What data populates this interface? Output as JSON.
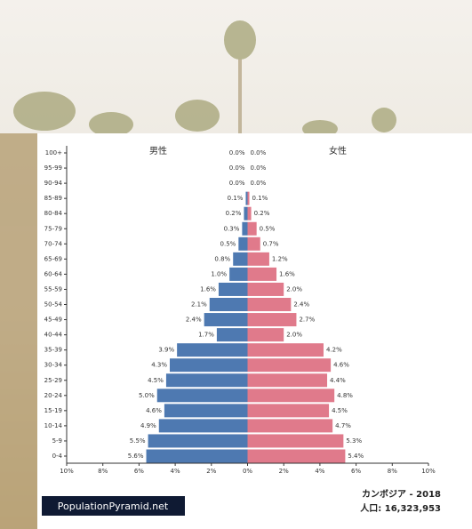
{
  "chart_data": {
    "type": "pyramid",
    "categories": [
      "100+",
      "95-99",
      "90-94",
      "85-89",
      "80-84",
      "75-79",
      "70-74",
      "65-69",
      "60-64",
      "55-59",
      "50-54",
      "45-49",
      "40-44",
      "35-39",
      "30-34",
      "25-29",
      "20-24",
      "15-19",
      "10-14",
      "5-9",
      "0-4"
    ],
    "series": [
      {
        "name": "男性",
        "color": "#4e79b1",
        "side": "left",
        "values": [
          0.0,
          0.0,
          0.0,
          0.1,
          0.2,
          0.3,
          0.5,
          0.8,
          1.0,
          1.6,
          2.1,
          2.4,
          1.7,
          3.9,
          4.3,
          4.5,
          5.0,
          4.6,
          4.9,
          5.5,
          5.6
        ],
        "value_labels": [
          "0.0%",
          "0.0%",
          "0.0%",
          "0.1%",
          "0.2%",
          "0.3%",
          "0.5%",
          "0.8%",
          "1.0%",
          "1.6%",
          "2.1%",
          "2.4%",
          "1.7%",
          "3.9%",
          "4.3%",
          "4.5%",
          "5.0%",
          "4.6%",
          "4.9%",
          "5.5%",
          "5.6%"
        ]
      },
      {
        "name": "女性",
        "color": "#e07a8b",
        "side": "right",
        "values": [
          0.0,
          0.0,
          0.0,
          0.1,
          0.2,
          0.5,
          0.7,
          1.2,
          1.6,
          2.0,
          2.4,
          2.7,
          2.0,
          4.2,
          4.6,
          4.4,
          4.8,
          4.5,
          4.7,
          5.3,
          5.4
        ],
        "value_labels": [
          "0.0%",
          "0.0%",
          "0.0%",
          "0.1%",
          "0.2%",
          "0.5%",
          "0.7%",
          "1.2%",
          "1.6%",
          "2.0%",
          "2.4%",
          "2.7%",
          "2.0%",
          "4.2%",
          "4.6%",
          "4.4%",
          "4.8%",
          "4.5%",
          "4.7%",
          "5.3%",
          "5.4%"
        ]
      }
    ],
    "xlim": [
      -10,
      10
    ],
    "xticks": [
      {
        "value": -10,
        "label": "10%"
      },
      {
        "value": -8,
        "label": "8%"
      },
      {
        "value": -6,
        "label": "6%"
      },
      {
        "value": -4,
        "label": "4%"
      },
      {
        "value": -2,
        "label": "2%"
      },
      {
        "value": 0,
        "label": "0%"
      },
      {
        "value": 2,
        "label": "2%"
      },
      {
        "value": 4,
        "label": "4%"
      },
      {
        "value": 6,
        "label": "6%"
      },
      {
        "value": 8,
        "label": "8%"
      },
      {
        "value": 10,
        "label": "10%"
      }
    ],
    "source": "PopulationPyramid.net",
    "country_year": "カンボジア - 2018",
    "population": "人口: 16,323,953"
  }
}
